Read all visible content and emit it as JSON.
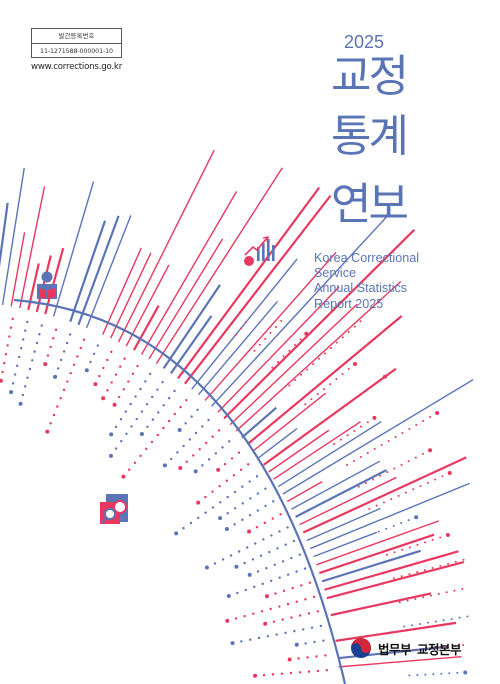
{
  "publication": {
    "registration_label": "발간등록번호",
    "registration_number": "11-1271588-000001-10",
    "website": "www.corrections.go.kr"
  },
  "title": {
    "year": "2025",
    "line1": "교정",
    "line2": "통계",
    "line3": "연보"
  },
  "english_title": {
    "line1": "Korea Correctional",
    "line2": "Service",
    "line3": "Annual Statistics",
    "line4": "Report 2025"
  },
  "publisher": {
    "ministry": "법무부",
    "service": "교정본부",
    "emblem": "korea-taegeuk-emblem"
  },
  "colors": {
    "accent_blue": "#5a74b6",
    "accent_pink": "#e8385f"
  },
  "icons": [
    "reader-icon",
    "bar-chart-icon",
    "document-search-icon"
  ]
}
